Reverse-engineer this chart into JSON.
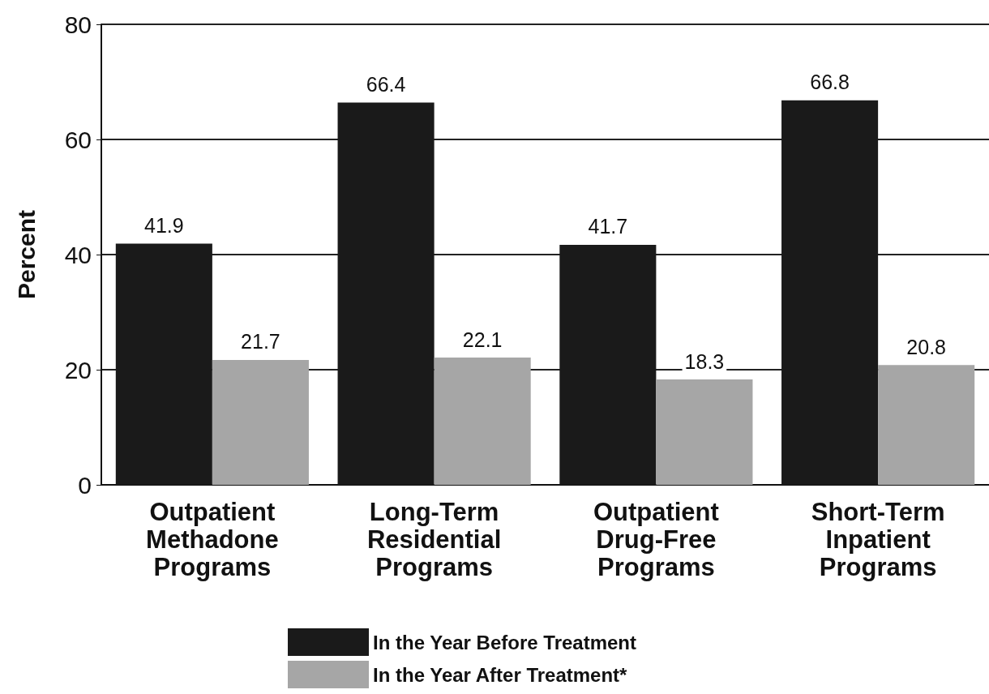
{
  "chart_data": {
    "type": "bar",
    "categories": [
      "Outpatient\nMethadone\nPrograms",
      "Long-Term\nResidential\nPrograms",
      "Outpatient\nDrug-Free\nPrograms",
      "Short-Term\nInpatient\nPrograms"
    ],
    "series": [
      {
        "name": "In the Year Before Treatment",
        "color": "#1a1a1a",
        "values": [
          41.9,
          66.4,
          41.7,
          66.8
        ]
      },
      {
        "name": "In the Year After Treatment*",
        "color": "#a6a6a6",
        "values": [
          21.7,
          22.1,
          18.3,
          20.8
        ]
      }
    ],
    "ylabel": "Percent",
    "ylim": [
      0,
      80
    ],
    "yticks": [
      0,
      20,
      40,
      60,
      80
    ],
    "grid": "y",
    "legend": "bottom",
    "data_labels": true
  }
}
